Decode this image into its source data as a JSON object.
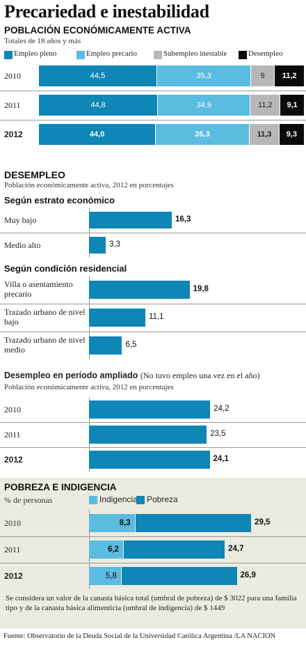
{
  "title": "Precariedad e inestabilidad",
  "source": "Fuente: Observatorio de la Deuda Social de la Universidad Católica Argentina /LA NACION",
  "colors": {
    "dark": "#0e86b6",
    "light": "#59bce0",
    "gray": "#b7b7b7",
    "black": "#0a0a0a",
    "panel": "#ecebe0"
  },
  "chart_data": [
    {
      "type": "bar",
      "stacked": true,
      "title": "POBLACIÓN ECONÓMICAMENTE ACTIVA",
      "subtitle": "Totales de 18 años y más",
      "categories": [
        "2010",
        "2011",
        "2012"
      ],
      "series": [
        {
          "name": "Empleo pleno",
          "values": [
            44.5,
            44.8,
            44.0
          ],
          "labels": [
            "44,5",
            "44,8",
            "44,0"
          ]
        },
        {
          "name": "Empleo precario",
          "values": [
            35.3,
            34.9,
            35.3
          ],
          "labels": [
            "35,3",
            "34,9",
            "35,3"
          ]
        },
        {
          "name": "Subempleo inestable",
          "values": [
            9,
            11.2,
            11.3
          ],
          "labels": [
            "9",
            "11,2",
            "11,3"
          ]
        },
        {
          "name": "Desempleo",
          "values": [
            11.2,
            9.1,
            9.3
          ],
          "labels": [
            "11,2",
            "9,1",
            "9,3"
          ]
        }
      ]
    },
    {
      "type": "bar",
      "title": "DESEMPLEO",
      "subtitle": "Población económicamente activa, 2012 en porcentajes",
      "groups": [
        {
          "title": "Según estrato económico",
          "categories": [
            "Muy bajo",
            "Medio alto"
          ],
          "values": [
            16.3,
            3.3
          ],
          "labels": [
            "16,3",
            "3,3"
          ]
        },
        {
          "title": "Según condición residencial",
          "categories": [
            "Villa o asentamiento precario",
            "Trazado urbano de nivel bajo",
            "Trazado urbano de nivel medio"
          ],
          "values": [
            19.8,
            11.1,
            6.5
          ],
          "labels": [
            "19,8",
            "11,1",
            "6,5"
          ]
        }
      ]
    },
    {
      "type": "bar",
      "title": "Desempleo en período ampliado",
      "title_note": "(No tuvo empleo una vez en el año)",
      "subtitle": "Población económicamente activa, 2012 en porcentajes",
      "categories": [
        "2010",
        "2011",
        "2012"
      ],
      "values": [
        24.2,
        23.5,
        24.1
      ],
      "labels": [
        "24,2",
        "23,5",
        "24,1"
      ]
    },
    {
      "type": "bar",
      "stacked": true,
      "title": "POBREZA E INDIGENCIA",
      "subtitle": "% de personas",
      "categories": [
        "2010",
        "2011",
        "2012"
      ],
      "series": [
        {
          "name": "Indigencia",
          "values": [
            8.3,
            6.2,
            5.8
          ],
          "labels": [
            "8,3",
            "6,2",
            "5,8"
          ]
        },
        {
          "name": "Pobreza",
          "values": [
            29.5,
            24.7,
            26.9
          ],
          "labels": [
            "29,5",
            "24,7",
            "26,9"
          ]
        }
      ],
      "note": "Se considera un valor de la canasta básica total (umbral de pobreza) de $ 3022 para una familia tipo y de la canasta básica alimenticia (umbral de indigencia) de $ 1449"
    }
  ]
}
